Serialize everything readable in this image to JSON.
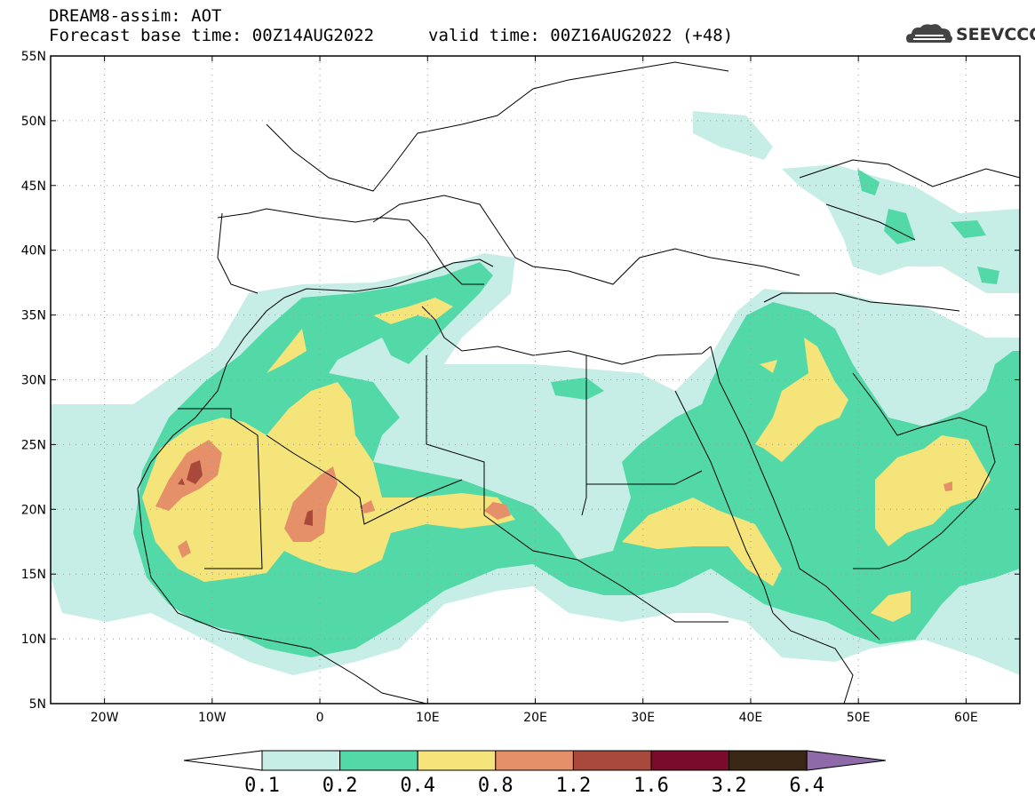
{
  "header": {
    "line1": "DREAM8-assim: AOT",
    "line2": "Forecast base time: 00Z14AUG2022",
    "line3": "valid time: 00Z16AUG2022 (+48)"
  },
  "logo": {
    "text": "SEEVCCC",
    "icon": "cloud-icon"
  },
  "map": {
    "lon_range": [
      -25,
      65
    ],
    "lat_range": [
      5,
      55
    ],
    "lat_labels": [
      "55N",
      "50N",
      "45N",
      "40N",
      "35N",
      "30N",
      "25N",
      "20N",
      "15N",
      "10N",
      "5N"
    ],
    "lon_labels": [
      "20W",
      "10W",
      "0",
      "10E",
      "20E",
      "30E",
      "40E",
      "50E",
      "60E"
    ]
  },
  "colorbar": {
    "labels": [
      "0.1",
      "0.2",
      "0.4",
      "0.8",
      "1.2",
      "1.6",
      "3.2",
      "6.4"
    ],
    "colors": [
      "#ffffff",
      "#c6eee6",
      "#53d9a8",
      "#f4e47a",
      "#e6906a",
      "#a9493c",
      "#7a0b2a",
      "#3a2615",
      "#8e6aa8"
    ]
  },
  "levels": {
    "l1": "#c6eee6",
    "l2": "#53d9a8",
    "l3": "#f4e47a",
    "l4": "#e6906a",
    "l5": "#a9493c",
    "l6": "#7a0b2a"
  }
}
